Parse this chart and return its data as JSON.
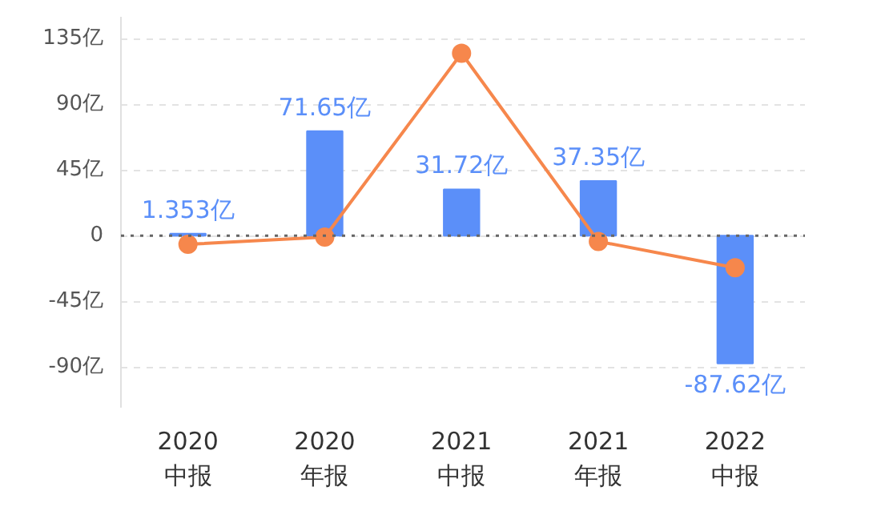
{
  "chart_data": {
    "type": "bar",
    "categories": [
      "2020\n中报",
      "2020\n年报",
      "2021\n中报",
      "2021\n年报",
      "2022\n中报"
    ],
    "series": [
      {
        "color": "#5b8ff9",
        "values": [
          1.353,
          71.65,
          31.72,
          37.35,
          -87.62
        ],
        "value_labels": [
          "1.353亿",
          "71.65亿",
          "31.72亿",
          "37.35亿",
          "-87.62亿"
        ]
      },
      {
        "type": "line",
        "color": "#f6874c",
        "values": [
          -6,
          -1,
          125,
          -4,
          -22
        ]
      }
    ],
    "ylim": [
      -118,
      150
    ],
    "yticks": [
      {
        "value": -90,
        "label": "-90亿"
      },
      {
        "value": -45,
        "label": "-45亿"
      },
      0,
      {
        "value": 45,
        "label": "45亿"
      },
      {
        "value": 90,
        "label": "90亿"
      },
      {
        "value": 135,
        "label": "135亿"
      }
    ],
    "ref_lines": [
      {
        "axis": "y",
        "value": 0,
        "label": null,
        "color": "#666666",
        "line_style": "dotted"
      }
    ],
    "grid": "y",
    "marker": "circle",
    "line_style": "solid"
  }
}
